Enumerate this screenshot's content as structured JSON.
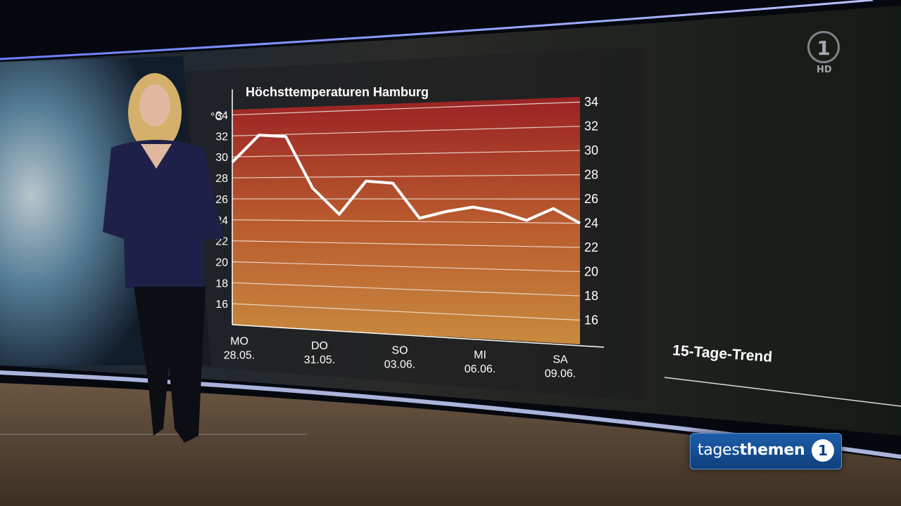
{
  "broadcast": {
    "channel_logo": "1",
    "hd_label": "HD",
    "show_name_part1": "tages",
    "show_name_part2": "themen",
    "show_logo": "1"
  },
  "side_panel": {
    "title": "15-Tage-Trend"
  },
  "chart_data": {
    "type": "line",
    "title": "Höchsttemperaturen Hamburg",
    "ylabel": "°C",
    "ylim": [
      14,
      36
    ],
    "yticks": [
      16,
      18,
      20,
      22,
      24,
      26,
      28,
      30,
      32,
      34
    ],
    "grid": true,
    "x_tick_labels": [
      {
        "day": "MO",
        "date": "28.05."
      },
      {
        "day": "DO",
        "date": "31.05."
      },
      {
        "day": "SO",
        "date": "03.06."
      },
      {
        "day": "MI",
        "date": "06.06."
      },
      {
        "day": "SA",
        "date": "09.06."
      }
    ],
    "x": [
      "28.05.",
      "29.05.",
      "30.05.",
      "31.05.",
      "01.06.",
      "02.06.",
      "03.06.",
      "04.06.",
      "05.06.",
      "06.06.",
      "07.06.",
      "08.06.",
      "09.06.",
      "10.06."
    ],
    "series": [
      {
        "values": [
          29.5,
          32.0,
          31.8,
          27.0,
          24.6,
          27.6,
          27.4,
          24.3,
          24.9,
          25.3,
          24.9,
          24.2,
          25.2,
          24.0
        ],
        "color": "#ffffff"
      }
    ],
    "background_gradient": [
      "#9a2224",
      "#b85a2e",
      "#c98a3e"
    ]
  }
}
